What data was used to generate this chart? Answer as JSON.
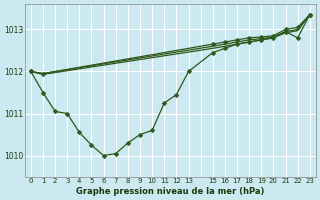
{
  "title": "Graphe pression niveau de la mer (hPa)",
  "bg_color": "#cce8f0",
  "grid_color": "#ffffff",
  "line_color": "#2d5a1b",
  "ylim": [
    1009.5,
    1013.6
  ],
  "xlim": [
    -0.5,
    23.5
  ],
  "yticks": [
    1010,
    1011,
    1012,
    1013
  ],
  "xtick_labels": [
    "0",
    "1",
    "2",
    "3",
    "4",
    "5",
    "6",
    "7",
    "8",
    "9",
    "10",
    "11",
    "12",
    "13",
    "",
    "15",
    "16",
    "17",
    "18",
    "19",
    "20",
    "21",
    "22",
    "23"
  ],
  "series": [
    {
      "x": [
        0,
        1,
        15,
        16,
        17,
        18,
        19,
        20,
        21,
        22,
        23
      ],
      "y": [
        1012.0,
        1011.95,
        1012.65,
        1012.7,
        1012.75,
        1012.8,
        1012.82,
        1012.85,
        1013.0,
        1013.05,
        1013.35
      ],
      "markers": true
    },
    {
      "x": [
        0,
        1,
        2,
        3,
        4,
        5,
        6,
        7,
        8,
        9,
        10,
        11,
        12,
        13,
        15,
        16,
        17,
        18,
        19,
        20,
        21,
        22,
        23
      ],
      "y": [
        1012.0,
        1011.5,
        1011.05,
        1011.0,
        1010.55,
        1010.25,
        1010.0,
        1010.05,
        1010.3,
        1010.5,
        1010.6,
        1011.25,
        1011.45,
        1012.0,
        1012.45,
        1012.55,
        1012.65,
        1012.7,
        1012.75,
        1012.8,
        1012.95,
        1012.8,
        1013.35
      ],
      "markers": true
    },
    {
      "x": [
        0,
        1,
        15,
        16,
        17,
        18,
        19,
        20,
        21,
        22,
        23
      ],
      "y": [
        1012.0,
        1011.95,
        1012.6,
        1012.65,
        1012.7,
        1012.75,
        1012.78,
        1012.82,
        1012.95,
        1013.0,
        1013.35
      ],
      "markers": false
    },
    {
      "x": [
        0,
        1,
        15,
        16,
        17,
        18,
        19,
        20,
        21,
        22,
        23
      ],
      "y": [
        1012.0,
        1011.93,
        1012.55,
        1012.6,
        1012.65,
        1012.7,
        1012.75,
        1012.8,
        1012.92,
        1012.97,
        1013.35
      ],
      "markers": false
    }
  ],
  "marker_size": 2.5
}
